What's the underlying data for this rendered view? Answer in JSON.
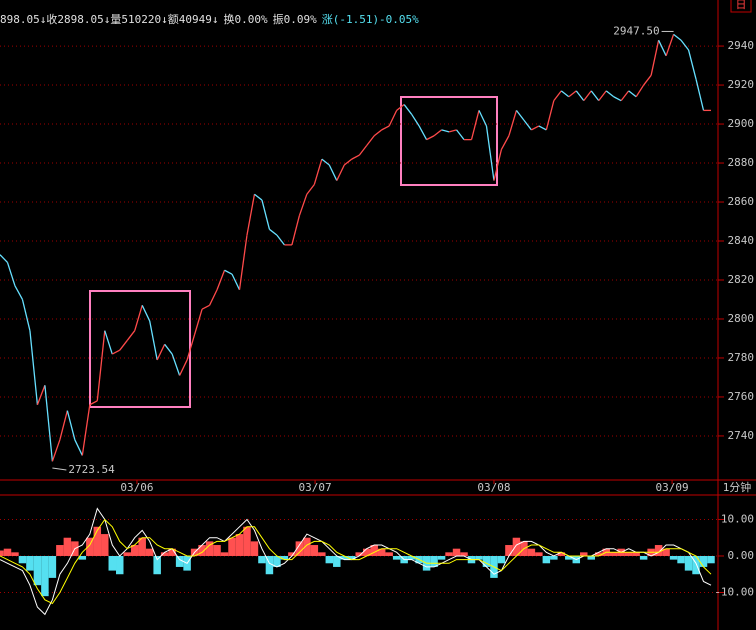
{
  "header": {
    "items": [
      {
        "text": "898.05↓",
        "color": "#e0e0e0"
      },
      {
        "text": "收2898.05↓",
        "color": "#e0e0e0"
      },
      {
        "text": "量510220↓",
        "color": "#e0e0e0"
      },
      {
        "text": "额40949↓",
        "color": "#e0e0e0"
      },
      {
        "text": "换0.00%",
        "color": "#e0e0e0"
      },
      {
        "text": "振0.09%",
        "color": "#e0e0e0"
      },
      {
        "text": "涨(-1.51)-0.05%",
        "color": "#55e0f0"
      }
    ],
    "period_button": "日"
  },
  "chart_data": [
    {
      "type": "line",
      "values": [
        2833,
        2829,
        2817,
        2810,
        2794,
        2756,
        2766,
        2727,
        2738,
        2753,
        2738,
        2730,
        2756,
        2758,
        2794,
        2782,
        2784,
        2789,
        2794,
        2807,
        2799,
        2779,
        2787,
        2782,
        2771,
        2779,
        2792,
        2805,
        2807,
        2815,
        2825,
        2823,
        2815,
        2843,
        2864,
        2861,
        2846,
        2843,
        2838,
        2838,
        2853,
        2864,
        2869,
        2882,
        2879,
        2871,
        2879,
        2882,
        2884,
        2889,
        2894,
        2897,
        2899,
        2907,
        2910,
        2905,
        2899,
        2892,
        2894,
        2897,
        2896,
        2897,
        2892,
        2892,
        2907,
        2899,
        2871,
        2887,
        2894,
        2907,
        2902,
        2897,
        2899,
        2897,
        2912,
        2917,
        2914,
        2917,
        2912,
        2917,
        2912,
        2917,
        2914,
        2912,
        2917,
        2914,
        2920,
        2925,
        2943,
        2935,
        2946,
        2943,
        2938,
        2923,
        2907,
        2907
      ],
      "up_color": "#ff4a4a",
      "down_color": "#66e0ff",
      "xlim": [
        0,
        95
      ],
      "xticks": [
        {
          "value": 18.3,
          "label": "03/06"
        },
        {
          "value": 42.1,
          "label": "03/07"
        },
        {
          "value": 66.0,
          "label": "03/08"
        },
        {
          "value": 89.8,
          "label": "03/09"
        }
      ],
      "x_unit_label": "1分钟",
      "ylim": [
        2717.4,
        2958.5
      ],
      "yticks": [
        2740,
        2760,
        2780,
        2800,
        2820,
        2840,
        2860,
        2880,
        2900,
        2920,
        2940
      ],
      "grid": true,
      "annotations": [
        {
          "text": "2947.50",
          "x": 90,
          "y": 2947.5
        },
        {
          "text": "2723.54",
          "x": 7,
          "y": 2723.54
        }
      ]
    },
    {
      "type": "macd",
      "values": [
        1.5,
        2,
        1,
        -2,
        -4,
        -8,
        -11,
        -6,
        3,
        5,
        4,
        -1,
        5,
        8,
        6,
        -4,
        -5,
        1,
        3,
        5,
        2,
        -5,
        1,
        2,
        -3,
        -4,
        2,
        3,
        4,
        3,
        1,
        5,
        6,
        8,
        4,
        -2,
        -5,
        -3,
        -1,
        1,
        4,
        5,
        3,
        1,
        -2,
        -3,
        -1,
        -1,
        1,
        2,
        3,
        2,
        1,
        -1,
        -2,
        -1,
        -2,
        -4,
        -3,
        -1,
        1,
        2,
        1,
        -2,
        -1,
        -3,
        -6,
        -2,
        3,
        5,
        4,
        2,
        1,
        -2,
        -1,
        1,
        -1,
        -2,
        1,
        -1,
        1,
        2,
        1,
        2,
        1,
        1,
        -1,
        2,
        3,
        2,
        -1,
        -2,
        -4,
        -5,
        -3,
        -2
      ],
      "up_color": "#ff5050",
      "down_color": "#55e0f0",
      "series": [
        {
          "color": "#ffffff",
          "values": [
            -1,
            -2,
            -3,
            -4,
            -8,
            -14,
            -16,
            -12,
            -5,
            -2,
            2,
            3,
            6,
            13,
            10,
            3,
            0,
            2,
            5,
            7,
            4,
            -1,
            1,
            2,
            -1,
            -2,
            1,
            3,
            5,
            5,
            4,
            6,
            8,
            10,
            7,
            2,
            -2,
            -3,
            -2,
            0,
            3,
            6,
            5,
            4,
            2,
            0,
            -1,
            -1,
            0,
            2,
            3,
            3,
            2,
            1,
            -1,
            -1,
            -2,
            -3,
            -3,
            -2,
            -1,
            0,
            0,
            -1,
            -1,
            -3,
            -5,
            -4,
            0,
            3,
            4,
            4,
            3,
            1,
            0,
            1,
            0,
            -1,
            0,
            0,
            1,
            2,
            2,
            1,
            2,
            1,
            1,
            0,
            1,
            3,
            3,
            2,
            1,
            -2,
            -7,
            -8
          ]
        },
        {
          "color": "#ffff00",
          "values": [
            0,
            -1,
            -2,
            -3,
            -5,
            -9,
            -12,
            -13,
            -10,
            -6,
            -2,
            1,
            3,
            7,
            10,
            8,
            4,
            2,
            3,
            5,
            5,
            3,
            2,
            2,
            1,
            0,
            0,
            1,
            3,
            4,
            4,
            5,
            6,
            8,
            8,
            5,
            2,
            0,
            -1,
            -1,
            1,
            3,
            4,
            4,
            3,
            1,
            0,
            -1,
            -1,
            0,
            1,
            2,
            2,
            2,
            1,
            0,
            -1,
            -2,
            -2,
            -2,
            -2,
            -1,
            -1,
            -1,
            -1,
            -2,
            -3,
            -4,
            -2,
            0,
            2,
            3,
            3,
            2,
            1,
            1,
            0,
            0,
            0,
            0,
            0,
            1,
            1,
            1,
            1,
            1,
            1,
            1,
            1,
            2,
            2,
            2,
            1,
            0,
            -3,
            -5
          ]
        }
      ],
      "xlim": [
        0,
        95
      ],
      "ylim": [
        -18.9,
        16.7
      ],
      "yticks": [
        {
          "value": 10,
          "label": "10.00"
        },
        {
          "value": 0,
          "label": "0.00"
        },
        {
          "value": -10,
          "label": "-10.00"
        }
      ],
      "grid": true
    }
  ]
}
